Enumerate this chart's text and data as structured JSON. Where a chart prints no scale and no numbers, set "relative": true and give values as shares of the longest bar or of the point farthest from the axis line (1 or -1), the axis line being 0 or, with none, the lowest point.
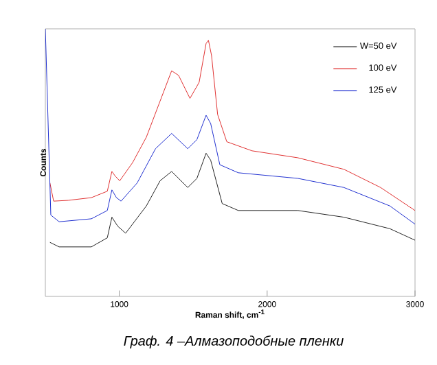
{
  "chart_data": {
    "type": "line",
    "relative": true,
    "xlabel": "Raman shift, cm$^{-1}$",
    "ylabel": "Counts",
    "xlim": [
      500,
      3000
    ],
    "xticks": [
      1000,
      2000,
      3000
    ],
    "legend": "top right",
    "tick_labels": "x",
    "annotations": [
      "Граф. 4 –Алмазоподобные пленки"
    ],
    "x": [
      531,
      556,
      655,
      811,
      919,
      950,
      972,
      1003,
      1090,
      1183,
      1276,
      1354,
      1401,
      1478,
      1540,
      1587,
      1603,
      1624,
      1665,
      1727,
      1898,
      2208,
      2519,
      2767,
      3000
    ],
    "series": [
      {
        "name": "W=50 eV",
        "color": "#222222",
        "x": [
          531,
          593,
          811,
          919,
          950,
          990,
          1043,
          1183,
          1276,
          1354,
          1463,
          1525,
          1587,
          1618,
          1696,
          1805,
          2208,
          2519,
          2830,
          3000
        ],
        "values": [
          0.202,
          0.185,
          0.185,
          0.219,
          0.296,
          0.262,
          0.236,
          0.338,
          0.432,
          0.467,
          0.407,
          0.441,
          0.535,
          0.509,
          0.347,
          0.321,
          0.321,
          0.296,
          0.253,
          0.21
        ]
      },
      {
        "name": "100 eV",
        "color": "#e03030",
        "values": [
          0.424,
          0.356,
          0.359,
          0.369,
          0.393,
          0.467,
          0.45,
          0.432,
          0.5,
          0.595,
          0.73,
          0.843,
          0.826,
          0.74,
          0.8,
          0.945,
          0.957,
          0.9,
          0.68,
          0.578,
          0.544,
          0.518,
          0.475,
          0.407,
          0.321
        ]
      },
      {
        "name": "125 eV",
        "color": "#2030d0",
        "x": [
          500,
          537,
          593,
          811,
          919,
          950,
          981,
          1012,
          1121,
          1245,
          1354,
          1463,
          1525,
          1587,
          1618,
          1680,
          1805,
          2208,
          2519,
          2830,
          3000
        ],
        "values": [
          1.0,
          0.304,
          0.279,
          0.29,
          0.321,
          0.398,
          0.369,
          0.356,
          0.424,
          0.552,
          0.609,
          0.552,
          0.586,
          0.677,
          0.646,
          0.492,
          0.462,
          0.441,
          0.407,
          0.338,
          0.27
        ]
      }
    ]
  }
}
